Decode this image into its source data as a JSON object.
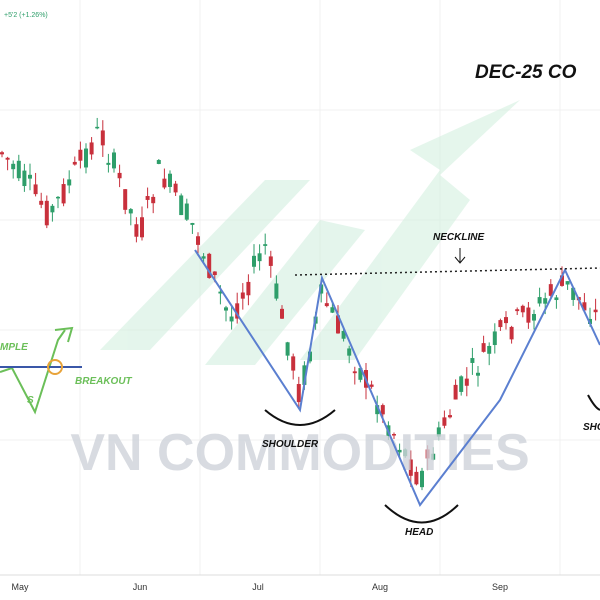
{
  "header": {
    "change": "+5'2 (+1.26%)",
    "title": "DEC-25 CO"
  },
  "annotations": {
    "neckline": "NECKLINE",
    "left_shoulder": "SHOULDER",
    "head": "HEAD",
    "right_shoulder": "SHO"
  },
  "inset": {
    "label": "MPLE",
    "breakout": "BREAKOUT",
    "mark": "S"
  },
  "watermark": "VN COMMODITIES",
  "x_axis": {
    "labels": [
      "May",
      "Jun",
      "Jul",
      "Aug",
      "Sep"
    ]
  }
}
